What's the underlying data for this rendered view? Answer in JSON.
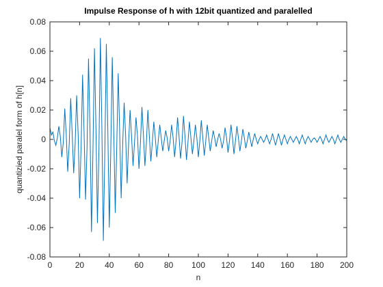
{
  "chart_data": {
    "type": "line",
    "title": "Impulse Response of h with 12bit quantized and paralelled",
    "x_label": "n",
    "y_label": "quantizied paralel form of h[n]",
    "color": "#0072bd",
    "xlim": [
      0,
      200
    ],
    "xticks": [
      0,
      20,
      40,
      60,
      80,
      100,
      120,
      140,
      160,
      180,
      200
    ],
    "ylim": [
      -0.08,
      0.08
    ],
    "yticks": [
      -0.08,
      -0.06,
      -0.04,
      -0.02,
      0,
      0.02,
      0.04,
      0.06,
      0.08
    ],
    "x": [
      0,
      1,
      2,
      3,
      4,
      5,
      6,
      7,
      8,
      9,
      10,
      11,
      12,
      13,
      14,
      15,
      16,
      17,
      18,
      19,
      20,
      21,
      22,
      23,
      24,
      25,
      26,
      27,
      28,
      29,
      30,
      31,
      32,
      33,
      34,
      35,
      36,
      37,
      38,
      39,
      40,
      41,
      42,
      43,
      44,
      45,
      46,
      47,
      48,
      49,
      50,
      51,
      52,
      53,
      54,
      55,
      56,
      57,
      58,
      59,
      60,
      61,
      62,
      63,
      64,
      65,
      66,
      67,
      68,
      69,
      70,
      71,
      72,
      73,
      74,
      75,
      76,
      77,
      78,
      79,
      80,
      81,
      82,
      83,
      84,
      85,
      86,
      87,
      88,
      89,
      90,
      91,
      92,
      93,
      94,
      95,
      96,
      97,
      98,
      99,
      100,
      101,
      102,
      103,
      104,
      105,
      106,
      107,
      108,
      109,
      110,
      111,
      112,
      113,
      114,
      115,
      116,
      117,
      118,
      119,
      120,
      121,
      122,
      123,
      124,
      125,
      126,
      127,
      128,
      129,
      130,
      131,
      132,
      133,
      134,
      135,
      136,
      137,
      138,
      139,
      140,
      141,
      142,
      143,
      144,
      145,
      146,
      147,
      148,
      149,
      150,
      151,
      152,
      153,
      154,
      155,
      156,
      157,
      158,
      159,
      160,
      161,
      162,
      163,
      164,
      165,
      166,
      167,
      168,
      169,
      170,
      171,
      172,
      173,
      174,
      175,
      176,
      177,
      178,
      179,
      180,
      181,
      182,
      183,
      184,
      185,
      186,
      187,
      188,
      189,
      190,
      191,
      192,
      193,
      194,
      195,
      196,
      197,
      198,
      199,
      200
    ],
    "values": [
      0.008,
      0.003,
      0.005,
      -0.001,
      -0.004,
      0.001,
      0.009,
      0.002,
      -0.012,
      -0.002,
      0.021,
      0.003,
      -0.022,
      -0.003,
      0.028,
      0.004,
      -0.023,
      -0.003,
      0.03,
      0.004,
      -0.04,
      -0.005,
      0.044,
      0.005,
      -0.041,
      -0.006,
      0.055,
      0.007,
      -0.063,
      -0.007,
      0.062,
      0.008,
      -0.057,
      -0.008,
      0.069,
      0.008,
      -0.069,
      -0.008,
      0.065,
      0.007,
      -0.06,
      -0.007,
      0.056,
      0.006,
      -0.05,
      -0.006,
      0.045,
      0.005,
      -0.04,
      -0.004,
      0.025,
      0.003,
      -0.03,
      -0.003,
      0.02,
      0.002,
      -0.018,
      -0.002,
      0.015,
      0.002,
      -0.02,
      -0.002,
      0.022,
      0.003,
      -0.018,
      -0.002,
      0.02,
      0.002,
      -0.015,
      -0.002,
      0.012,
      0.001,
      -0.012,
      -0.001,
      0.01,
      0.001,
      -0.008,
      -0.001,
      0.006,
      0.001,
      -0.008,
      -0.001,
      0.01,
      0.001,
      -0.012,
      -0.001,
      0.015,
      0.002,
      -0.013,
      -0.002,
      0.016,
      0.002,
      -0.014,
      -0.002,
      0.012,
      0.001,
      -0.01,
      -0.001,
      0.01,
      0.001,
      -0.012,
      -0.001,
      0.013,
      0.001,
      -0.011,
      -0.001,
      0.01,
      0.001,
      -0.008,
      -0.001,
      0.006,
      0.001,
      -0.005,
      0,
      0.004,
      0,
      -0.006,
      -0.001,
      0.008,
      0.001,
      -0.009,
      -0.001,
      0.01,
      0.001,
      -0.01,
      -0.001,
      0.009,
      0.001,
      -0.008,
      -0.001,
      0.007,
      0.001,
      -0.006,
      -0.001,
      0.005,
      0,
      -0.005,
      0,
      0.004,
      0,
      -0.003,
      0,
      0.002,
      0,
      -0.002,
      0,
      0.003,
      0,
      -0.003,
      0,
      0.004,
      0,
      -0.004,
      0,
      0.004,
      0,
      -0.004,
      0,
      0.003,
      0,
      -0.003,
      0,
      0.002,
      0,
      -0.002,
      0,
      0.002,
      0,
      -0.003,
      0,
      0.003,
      0,
      -0.003,
      0,
      0.002,
      0,
      -0.002,
      0,
      0.001,
      0,
      -0.002,
      0,
      0.002,
      0,
      -0.003,
      0,
      0.003,
      0,
      -0.002,
      0,
      0.002,
      0,
      -0.003,
      0,
      0.003,
      0,
      -0.002,
      0,
      0.002,
      0,
      -0.001
    ]
  }
}
